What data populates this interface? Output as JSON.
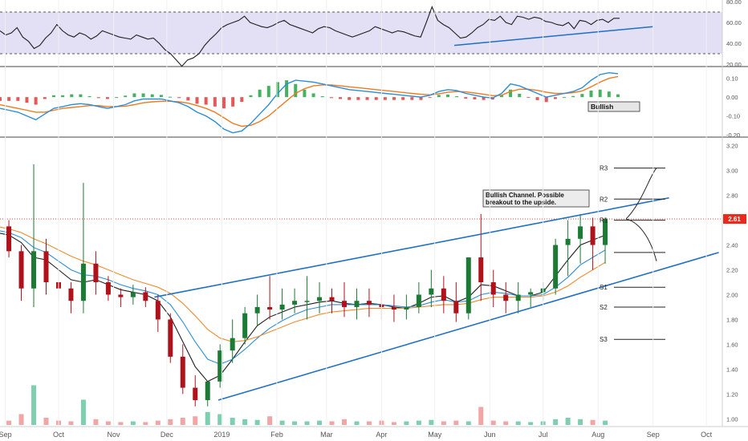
{
  "colors": {
    "up": "#1b7a34",
    "down": "#b0121b",
    "rsi_band": "#e3dff5",
    "rsi_line": "#202020",
    "trend": "#1f6fc5",
    "macd_line": "#2a8ed8",
    "signal_line": "#ee7b1f",
    "ma_fast": "#2a8ed8",
    "ma_slow": "#f08a2c",
    "ma_dark": "#1f1f1f",
    "hist_up": "#26a545",
    "hist_down": "#e33a3a",
    "price_tag": "#e8291c",
    "vol_up": "#7ecfb0",
    "vol_down": "#f2a5a5"
  },
  "x_axis": {
    "months": [
      "Sep",
      "Oct",
      "Nov",
      "Dec",
      "2019",
      "Feb",
      "Mar",
      "Apr",
      "May",
      "Jun",
      "Jul",
      "Aug",
      "Sep",
      "Oct"
    ]
  },
  "chart_data": [
    {
      "type": "line",
      "panel": "rsi",
      "ylim": [
        20,
        80
      ],
      "ticks": [
        "80.00",
        "60.00",
        "40.00",
        "20.00"
      ],
      "band": [
        30,
        70
      ],
      "series": [
        {
          "values": [
            52,
            48,
            50,
            55,
            46,
            42,
            35,
            38,
            45,
            50,
            58,
            52,
            48,
            46,
            50,
            48,
            44,
            47,
            52,
            50,
            48,
            46,
            45,
            44,
            48,
            46,
            44,
            45,
            40,
            34,
            30,
            24,
            18,
            24,
            26,
            30,
            38,
            44,
            49,
            55,
            58,
            60,
            62,
            66,
            60,
            58,
            56,
            55,
            57,
            60,
            62,
            58,
            56,
            54,
            52,
            50,
            54,
            56,
            55,
            52,
            50,
            48,
            46,
            48,
            50,
            52,
            56,
            54,
            52,
            50,
            52,
            51,
            49,
            47,
            46,
            60,
            75,
            62,
            58,
            55,
            50,
            45,
            46,
            50,
            55,
            58,
            63,
            62,
            66,
            60,
            58,
            66,
            65,
            63,
            65,
            64,
            61,
            60,
            58,
            57,
            60,
            54,
            62,
            61,
            58,
            62,
            63,
            60,
            64,
            64
          ]
        }
      ],
      "annotations": [
        {
          "type": "trendline",
          "from": [
            "2019-05-12",
            38
          ],
          "to": [
            "2019-09-01",
            56
          ]
        }
      ]
    },
    {
      "type": "line",
      "panel": "macd",
      "ylim": [
        -0.2,
        0.15
      ],
      "ticks": [
        "0.10",
        "0.00",
        "-0.10",
        "-0.20"
      ],
      "series": [
        {
          "name": "MACD",
          "values": [
            -0.06,
            -0.07,
            -0.08,
            -0.1,
            -0.12,
            -0.09,
            -0.06,
            -0.05,
            -0.04,
            -0.035,
            -0.04,
            -0.05,
            -0.06,
            -0.05,
            -0.04,
            -0.02,
            -0.01,
            -0.01,
            -0.01,
            -0.02,
            -0.03,
            -0.05,
            -0.08,
            -0.1,
            -0.13,
            -0.17,
            -0.19,
            -0.18,
            -0.14,
            -0.09,
            -0.04,
            0.02,
            0.07,
            0.09,
            0.085,
            0.08,
            0.07,
            0.06,
            0.05,
            0.04,
            0.035,
            0.03,
            0.025,
            0.02,
            0.015,
            0.01,
            0.005,
            0.0,
            0.01,
            0.03,
            0.04,
            0.035,
            0.02,
            0.01,
            0.0,
            -0.005,
            0.02,
            0.07,
            0.06,
            0.04,
            0.02,
            0.0,
            0.01,
            0.02,
            0.03,
            0.05,
            0.09,
            0.12,
            0.13,
            0.125
          ]
        },
        {
          "name": "Signal",
          "values": [
            -0.04,
            -0.05,
            -0.06,
            -0.07,
            -0.08,
            -0.08,
            -0.07,
            -0.06,
            -0.055,
            -0.05,
            -0.045,
            -0.045,
            -0.05,
            -0.05,
            -0.048,
            -0.04,
            -0.03,
            -0.025,
            -0.022,
            -0.022,
            -0.025,
            -0.032,
            -0.045,
            -0.06,
            -0.08,
            -0.11,
            -0.14,
            -0.155,
            -0.15,
            -0.13,
            -0.1,
            -0.06,
            -0.02,
            0.02,
            0.045,
            0.06,
            0.065,
            0.065,
            0.06,
            0.055,
            0.05,
            0.045,
            0.04,
            0.035,
            0.03,
            0.025,
            0.02,
            0.015,
            0.012,
            0.018,
            0.026,
            0.03,
            0.028,
            0.022,
            0.015,
            0.008,
            0.01,
            0.03,
            0.042,
            0.042,
            0.036,
            0.026,
            0.02,
            0.02,
            0.024,
            0.033,
            0.055,
            0.08,
            0.1,
            0.11
          ]
        }
      ],
      "annotations": [
        {
          "type": "label",
          "text": "Bullish"
        }
      ]
    },
    {
      "type": "candlestick",
      "panel": "price",
      "ylim": [
        0.95,
        3.25
      ],
      "ticks": [
        "3.20",
        "3.00",
        "2.80",
        "2.60",
        "2.40",
        "2.20",
        "2.00",
        "1.80",
        "1.60",
        "1.40",
        "1.20",
        "1.00"
      ],
      "last_price": "2.61",
      "candles": {
        "dates": [
          "2018-08-27",
          "2018-09-03",
          "2018-09-10",
          "2018-09-17",
          "2018-09-24",
          "2018-10-01",
          "2018-10-08",
          "2018-10-15",
          "2018-10-22",
          "2018-10-29",
          "2018-11-05",
          "2018-11-12",
          "2018-11-19",
          "2018-11-26",
          "2018-12-03",
          "2018-12-10",
          "2018-12-17",
          "2018-12-24",
          "2018-12-31",
          "2019-01-07",
          "2019-01-14",
          "2019-01-21",
          "2019-01-28",
          "2019-02-04",
          "2019-02-11",
          "2019-02-18",
          "2019-02-25",
          "2019-03-04",
          "2019-03-11",
          "2019-03-18",
          "2019-03-25",
          "2019-04-01",
          "2019-04-08",
          "2019-04-15",
          "2019-04-22",
          "2019-04-29",
          "2019-05-06",
          "2019-05-13",
          "2019-05-20",
          "2019-05-27",
          "2019-06-03",
          "2019-06-10",
          "2019-06-17",
          "2019-06-24",
          "2019-07-01",
          "2019-07-08",
          "2019-07-15",
          "2019-07-22",
          "2019-07-29",
          "2019-08-05"
        ],
        "open": [
          2.55,
          2.55,
          2.35,
          2.05,
          2.35,
          2.1,
          2.05,
          1.95,
          2.25,
          2.1,
          2.0,
          1.98,
          2.02,
          1.95,
          1.8,
          1.5,
          1.25,
          1.15,
          1.3,
          1.55,
          1.65,
          1.85,
          1.9,
          1.88,
          1.92,
          1.95,
          1.95,
          1.98,
          1.95,
          1.9,
          1.95,
          1.92,
          1.9,
          1.88,
          1.9,
          2.0,
          2.05,
          1.95,
          1.85,
          2.3,
          2.1,
          2.0,
          1.95,
          2.0,
          2.02,
          2.05,
          2.4,
          2.45,
          2.55,
          2.4
        ],
        "high": [
          2.62,
          2.6,
          2.4,
          3.05,
          2.45,
          2.2,
          2.1,
          2.9,
          2.35,
          2.15,
          2.05,
          2.08,
          2.06,
          2.0,
          1.85,
          1.6,
          1.35,
          1.3,
          1.6,
          1.8,
          1.9,
          2.0,
          2.15,
          2.05,
          2.05,
          2.15,
          2.1,
          2.05,
          2.1,
          2.05,
          2.05,
          2.0,
          2.0,
          2.0,
          2.1,
          2.2,
          2.15,
          2.1,
          2.3,
          2.65,
          2.2,
          2.1,
          2.1,
          2.05,
          2.1,
          2.45,
          2.6,
          2.65,
          2.62,
          2.62
        ],
        "low": [
          2.4,
          2.3,
          1.95,
          1.9,
          2.0,
          1.95,
          1.85,
          1.85,
          2.0,
          1.95,
          1.9,
          1.92,
          1.9,
          1.7,
          1.45,
          1.2,
          1.1,
          1.1,
          1.25,
          1.45,
          1.6,
          1.75,
          1.8,
          1.8,
          1.85,
          1.8,
          1.85,
          1.85,
          1.82,
          1.8,
          1.82,
          1.8,
          1.78,
          1.8,
          1.85,
          1.9,
          1.85,
          1.78,
          1.8,
          1.95,
          1.9,
          1.85,
          1.85,
          1.9,
          1.95,
          2.0,
          2.15,
          2.25,
          2.2,
          2.25
        ],
        "close": [
          2.55,
          2.35,
          2.05,
          2.35,
          2.1,
          2.05,
          1.95,
          2.25,
          2.1,
          2.0,
          1.98,
          2.02,
          1.95,
          1.8,
          1.5,
          1.25,
          1.15,
          1.3,
          1.55,
          1.65,
          1.85,
          1.9,
          1.88,
          1.92,
          1.95,
          1.95,
          1.98,
          1.95,
          1.9,
          1.95,
          1.92,
          1.9,
          1.88,
          1.9,
          2.0,
          2.05,
          1.95,
          1.85,
          2.3,
          2.1,
          2.0,
          1.95,
          2.0,
          2.02,
          2.05,
          2.4,
          2.45,
          2.55,
          2.4,
          2.61
        ]
      },
      "moving_averages": [
        {
          "values": [
            2.5,
            2.48,
            2.42,
            2.3,
            2.28,
            2.2,
            2.12,
            2.1,
            2.12,
            2.08,
            2.04,
            2.02,
            2.0,
            1.95,
            1.82,
            1.62,
            1.42,
            1.3,
            1.35,
            1.48,
            1.62,
            1.75,
            1.82,
            1.86,
            1.9,
            1.92,
            1.94,
            1.95,
            1.93,
            1.92,
            1.93,
            1.92,
            1.9,
            1.89,
            1.93,
            1.98,
            1.99,
            1.94,
            1.98,
            2.08,
            2.07,
            2.03,
            1.99,
            1.99,
            2.02,
            2.15,
            2.28,
            2.4,
            2.44,
            2.48
          ]
        },
        {
          "values": [
            2.52,
            2.5,
            2.46,
            2.38,
            2.34,
            2.27,
            2.2,
            2.16,
            2.15,
            2.12,
            2.08,
            2.05,
            2.03,
            2.0,
            1.92,
            1.78,
            1.62,
            1.48,
            1.44,
            1.48,
            1.56,
            1.65,
            1.73,
            1.79,
            1.84,
            1.88,
            1.9,
            1.92,
            1.92,
            1.92,
            1.92,
            1.92,
            1.91,
            1.9,
            1.91,
            1.94,
            1.96,
            1.94,
            1.95,
            2.0,
            2.02,
            2.01,
            1.99,
            1.99,
            2.0,
            2.06,
            2.14,
            2.24,
            2.3,
            2.36
          ]
        },
        {
          "values": [
            2.55,
            2.53,
            2.5,
            2.45,
            2.41,
            2.36,
            2.31,
            2.27,
            2.24,
            2.2,
            2.16,
            2.12,
            2.09,
            2.06,
            2.01,
            1.93,
            1.83,
            1.72,
            1.65,
            1.62,
            1.63,
            1.66,
            1.7,
            1.74,
            1.78,
            1.81,
            1.84,
            1.86,
            1.87,
            1.88,
            1.89,
            1.89,
            1.89,
            1.89,
            1.9,
            1.91,
            1.92,
            1.92,
            1.93,
            1.96,
            1.98,
            1.98,
            1.98,
            1.98,
            1.99,
            2.02,
            2.07,
            2.14,
            2.2,
            2.26
          ]
        }
      ],
      "volume": [
        0.08,
        0.06,
        0.15,
        0.55,
        0.1,
        0.06,
        0.05,
        0.35,
        0.08,
        0.05,
        0.04,
        0.05,
        0.04,
        0.06,
        0.08,
        0.1,
        0.12,
        0.18,
        0.15,
        0.1,
        0.08,
        0.07,
        0.12,
        0.06,
        0.05,
        0.05,
        0.06,
        0.05,
        0.08,
        0.05,
        0.05,
        0.06,
        0.04,
        0.05,
        0.06,
        0.07,
        0.05,
        0.06,
        0.05,
        0.25,
        0.06,
        0.05,
        0.05,
        0.04,
        0.05,
        0.08,
        0.1,
        0.08,
        0.07,
        0.06
      ],
      "channel": {
        "upper": {
          "from": [
            "2018-11-24",
            1.98
          ],
          "to": [
            "2019-09-10",
            2.78
          ]
        },
        "lower": {
          "from": [
            "2018-12-30",
            1.15
          ],
          "to": [
            "2019-10-08",
            2.34
          ]
        }
      },
      "levels": [
        {
          "name": "R3",
          "value": 3.02
        },
        {
          "name": "R2",
          "value": 2.77
        },
        {
          "name": "R1",
          "value": 2.6
        },
        {
          "name": "",
          "value": 2.34
        },
        {
          "name": "S1",
          "value": 2.06
        },
        {
          "name": "S2",
          "value": 1.9
        },
        {
          "name": "S3",
          "value": 1.64
        }
      ],
      "annotations": [
        {
          "type": "callout",
          "lines": [
            "Bullish Channel. Possible",
            "breakout to the upside."
          ]
        }
      ]
    }
  ]
}
